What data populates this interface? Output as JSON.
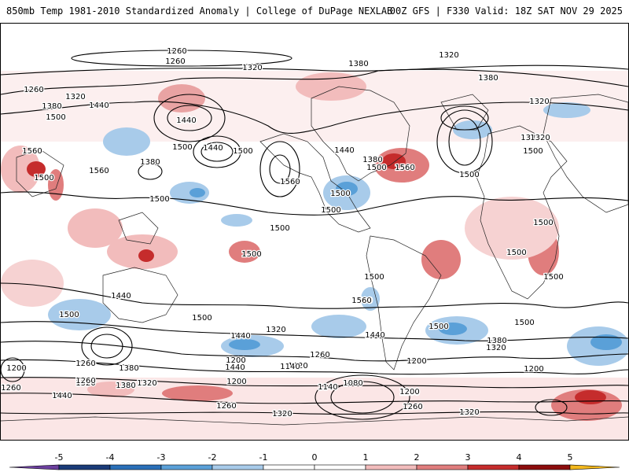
{
  "header": {
    "left": "850mb Temp 1981-2010 Standardized Anomaly | College of DuPage NEXLAB",
    "right": "00Z GFS | F330 Valid: 18Z SAT NOV 29 2025"
  },
  "colorbar": {
    "ticks": [
      "-5",
      "-4",
      "-3",
      "-2",
      "-1",
      "0",
      "1",
      "2",
      "3",
      "4",
      "5"
    ],
    "bins": [
      {
        "from": -5,
        "to": -4,
        "color": "#1a3b78"
      },
      {
        "from": -4,
        "to": -3,
        "color": "#2a6fb8"
      },
      {
        "from": -3,
        "to": -2,
        "color": "#5aa0d8"
      },
      {
        "from": -2,
        "to": -1,
        "color": "#a8cbea"
      },
      {
        "from": -1,
        "to": 0,
        "color": "#ffffff"
      },
      {
        "from": 0,
        "to": 1,
        "color": "#ffffff"
      },
      {
        "from": 1,
        "to": 2,
        "color": "#f2bcbc"
      },
      {
        "from": 2,
        "to": 3,
        "color": "#e07d7d"
      },
      {
        "from": 3,
        "to": 4,
        "color": "#c52c2c"
      },
      {
        "from": 4,
        "to": 5,
        "color": "#8c0d0d"
      }
    ],
    "low_cap_color": "#6b3f9e",
    "high_cap_color": "#f3b81d"
  },
  "contour_labels": [
    "1260",
    "1260",
    "1320",
    "1380",
    "1320",
    "1380",
    "1260",
    "1380",
    "1320",
    "1440",
    "1320",
    "1500",
    "1440",
    "1440",
    "1500",
    "1380",
    "1560",
    "1500",
    "1440",
    "1560",
    "1500",
    "1380",
    "1500",
    "1440",
    "1380",
    "1320",
    "1500",
    "1560",
    "1560",
    "1500",
    "1500",
    "1500",
    "1500",
    "1500",
    "1500",
    "1500",
    "1500",
    "1500",
    "1500",
    "1500",
    "1440",
    "1500",
    "1500",
    "1560",
    "1500",
    "1500",
    "1440",
    "1320",
    "1380",
    "1320",
    "1440",
    "1500",
    "1440",
    "1380",
    "1320",
    "1260",
    "1200",
    "1260",
    "1320",
    "1200",
    "1140",
    "1260",
    "1200",
    "1200",
    "1080",
    "1140",
    "1200",
    "1200",
    "1260",
    "1260",
    "1380",
    "1320",
    "1320",
    "1260",
    "1320",
    "1440",
    "1200"
  ]
}
